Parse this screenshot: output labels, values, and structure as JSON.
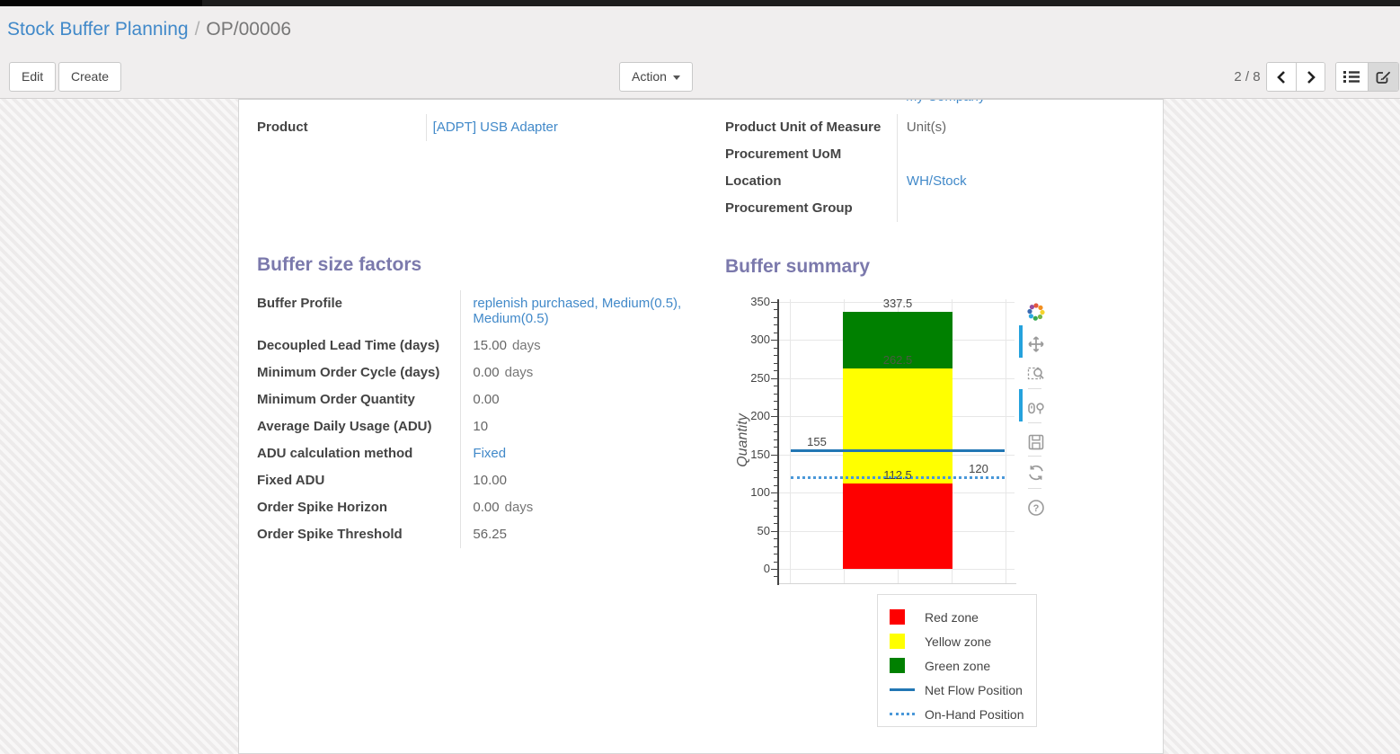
{
  "control_panel": {
    "breadcrumb": {
      "parent": "Stock Buffer Planning",
      "separator": "/",
      "current": "OP/00006"
    },
    "edit_label": "Edit",
    "create_label": "Create",
    "action_label": "Action",
    "pager_text": "2 / 8",
    "icons": {
      "prev": "chevron-left-icon",
      "next": "chevron-right-icon",
      "list_view": "list-view-icon",
      "form_view": "form-view-icon"
    }
  },
  "sheet": {
    "company_partial_value": "My Company",
    "product_group": {
      "rows": [
        {
          "label": "Product",
          "value": "[ADPT] USB Adapter",
          "link": true
        }
      ]
    },
    "info_group": {
      "rows": [
        {
          "label": "Product Unit of Measure",
          "value": "Unit(s)",
          "link": false
        },
        {
          "label": "Procurement UoM",
          "value": "",
          "link": false
        },
        {
          "label": "Location",
          "value": "WH/Stock",
          "link": true
        },
        {
          "label": "Procurement Group",
          "value": "",
          "link": false
        }
      ]
    },
    "buffer_factors": {
      "title": "Buffer size factors",
      "rows": [
        {
          "label": "Buffer Profile",
          "value": "replenish purchased, Medium(0.5), Medium(0.5)",
          "link": true
        },
        {
          "label": "Decoupled Lead Time (days)",
          "value": "15.00",
          "suffix": "days"
        },
        {
          "label": "Minimum Order Cycle (days)",
          "value": "0.00",
          "suffix": "days"
        },
        {
          "label": "Minimum Order Quantity",
          "value": "0.00"
        },
        {
          "label": "Average Daily Usage (ADU)",
          "value": "10"
        },
        {
          "label": "ADU calculation method",
          "value": "Fixed",
          "link": true
        },
        {
          "label": "Fixed ADU",
          "value": "10.00"
        },
        {
          "label": "Order Spike Horizon",
          "value": "0.00",
          "suffix": "days"
        },
        {
          "label": "Order Spike Threshold",
          "value": "56.25"
        }
      ]
    },
    "buffer_summary_title": "Buffer summary"
  },
  "chart_data": {
    "type": "bar",
    "title": "Buffer summary",
    "ylabel": "Quantity",
    "ylim": [
      0,
      350
    ],
    "yticks": [
      0,
      50,
      100,
      150,
      200,
      250,
      300,
      350
    ],
    "minor_tick_step": 10,
    "grid": true,
    "zones": [
      {
        "name": "Red zone",
        "from": 0,
        "to": 112.5,
        "color": "#fe0000"
      },
      {
        "name": "Yellow zone",
        "from": 112.5,
        "to": 262.5,
        "color": "#ffff00"
      },
      {
        "name": "Green zone",
        "from": 262.5,
        "to": 337.5,
        "color": "#008000"
      }
    ],
    "lines": [
      {
        "name": "Net Flow Position",
        "value": 155,
        "style": "solid",
        "color": "#2277b4",
        "label": "155",
        "label_x": "left"
      },
      {
        "name": "On-Hand Position",
        "value": 120,
        "style": "dotted",
        "color": "#4a98d9",
        "label": "120",
        "label_x": "right"
      }
    ],
    "bar_labels": [
      {
        "text": "337.5",
        "value": 337.5,
        "x": "center",
        "color": "#444444"
      },
      {
        "text": "262.5",
        "value": 262.5,
        "x": "center",
        "color": "#4a5a42"
      },
      {
        "text": "112.5",
        "value": 112.5,
        "x": "center",
        "color": "#444444"
      }
    ],
    "legend_position": "bottom-right",
    "legend": [
      {
        "label": "Red zone",
        "swatch": "square",
        "color": "#fe0000"
      },
      {
        "label": "Yellow zone",
        "swatch": "square",
        "color": "#ffff00"
      },
      {
        "label": "Green zone",
        "swatch": "square",
        "color": "#008000"
      },
      {
        "label": "Net Flow Position",
        "swatch": "line",
        "color": "#2277b4"
      },
      {
        "label": "On-Hand Position",
        "swatch": "dots",
        "color": "#4a98d9"
      }
    ],
    "toolbar_icons": [
      "plotly-logo-icon",
      "pan-icon",
      "box-zoom-icon",
      "compare-hover-icon",
      "save-icon",
      "reset-axes-icon",
      "help-icon"
    ]
  }
}
